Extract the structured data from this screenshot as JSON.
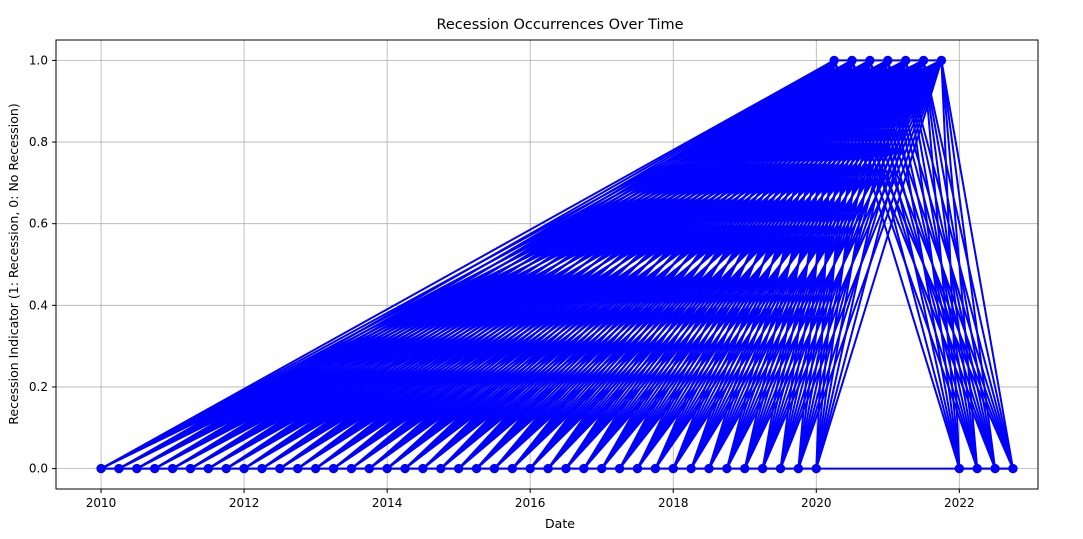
{
  "chart_data": {
    "type": "line",
    "title": "Recession Occurrences Over Time",
    "xlabel": "Date",
    "ylabel": "Recession Indicator (1: Recession, 0: No Recession)",
    "xlim": [
      2009.37,
      2023.1
    ],
    "ylim": [
      -0.05,
      1.05
    ],
    "x_ticks": [
      2010,
      2012,
      2014,
      2016,
      2018,
      2020,
      2022
    ],
    "x_tick_labels": [
      "2010",
      "2012",
      "2014",
      "2016",
      "2018",
      "2020",
      "2022"
    ],
    "y_ticks": [
      0.0,
      0.2,
      0.4,
      0.6,
      0.8,
      1.0
    ],
    "y_tick_labels": [
      "0.0",
      "0.2",
      "0.4",
      "0.6",
      "0.8",
      "1.0"
    ],
    "grid": true,
    "legend": "none",
    "series": [
      {
        "color": "#0000ff",
        "marker": "circle",
        "x": [
          "2010-01",
          "2010-04",
          "2010-07",
          "2010-10",
          "2011-01",
          "2011-04",
          "2011-07",
          "2011-10",
          "2012-01",
          "2012-04",
          "2012-07",
          "2012-10",
          "2013-01",
          "2013-04",
          "2013-07",
          "2013-10",
          "2014-01",
          "2014-04",
          "2014-07",
          "2014-10",
          "2015-01",
          "2015-04",
          "2015-07",
          "2015-10",
          "2016-01",
          "2016-04",
          "2016-07",
          "2016-10",
          "2017-01",
          "2017-04",
          "2017-07",
          "2017-10",
          "2018-01",
          "2018-04",
          "2018-07",
          "2018-10",
          "2019-01",
          "2019-04",
          "2019-07",
          "2019-10",
          "2020-01",
          "2020-04",
          "2020-07",
          "2020-10",
          "2021-01",
          "2021-04",
          "2021-07",
          "2021-10",
          "2022-01",
          "2022-04",
          "2022-07",
          "2022-10"
        ],
        "y": [
          0,
          0,
          0,
          0,
          0,
          0,
          0,
          0,
          0,
          0,
          0,
          0,
          0,
          0,
          0,
          0,
          0,
          0,
          0,
          0,
          0,
          0,
          0,
          0,
          0,
          0,
          0,
          0,
          0,
          0,
          0,
          0,
          0,
          0,
          0,
          0,
          0,
          0,
          0,
          0,
          0,
          1,
          1,
          1,
          1,
          1,
          1,
          1,
          0,
          0,
          0,
          0
        ]
      }
    ]
  }
}
